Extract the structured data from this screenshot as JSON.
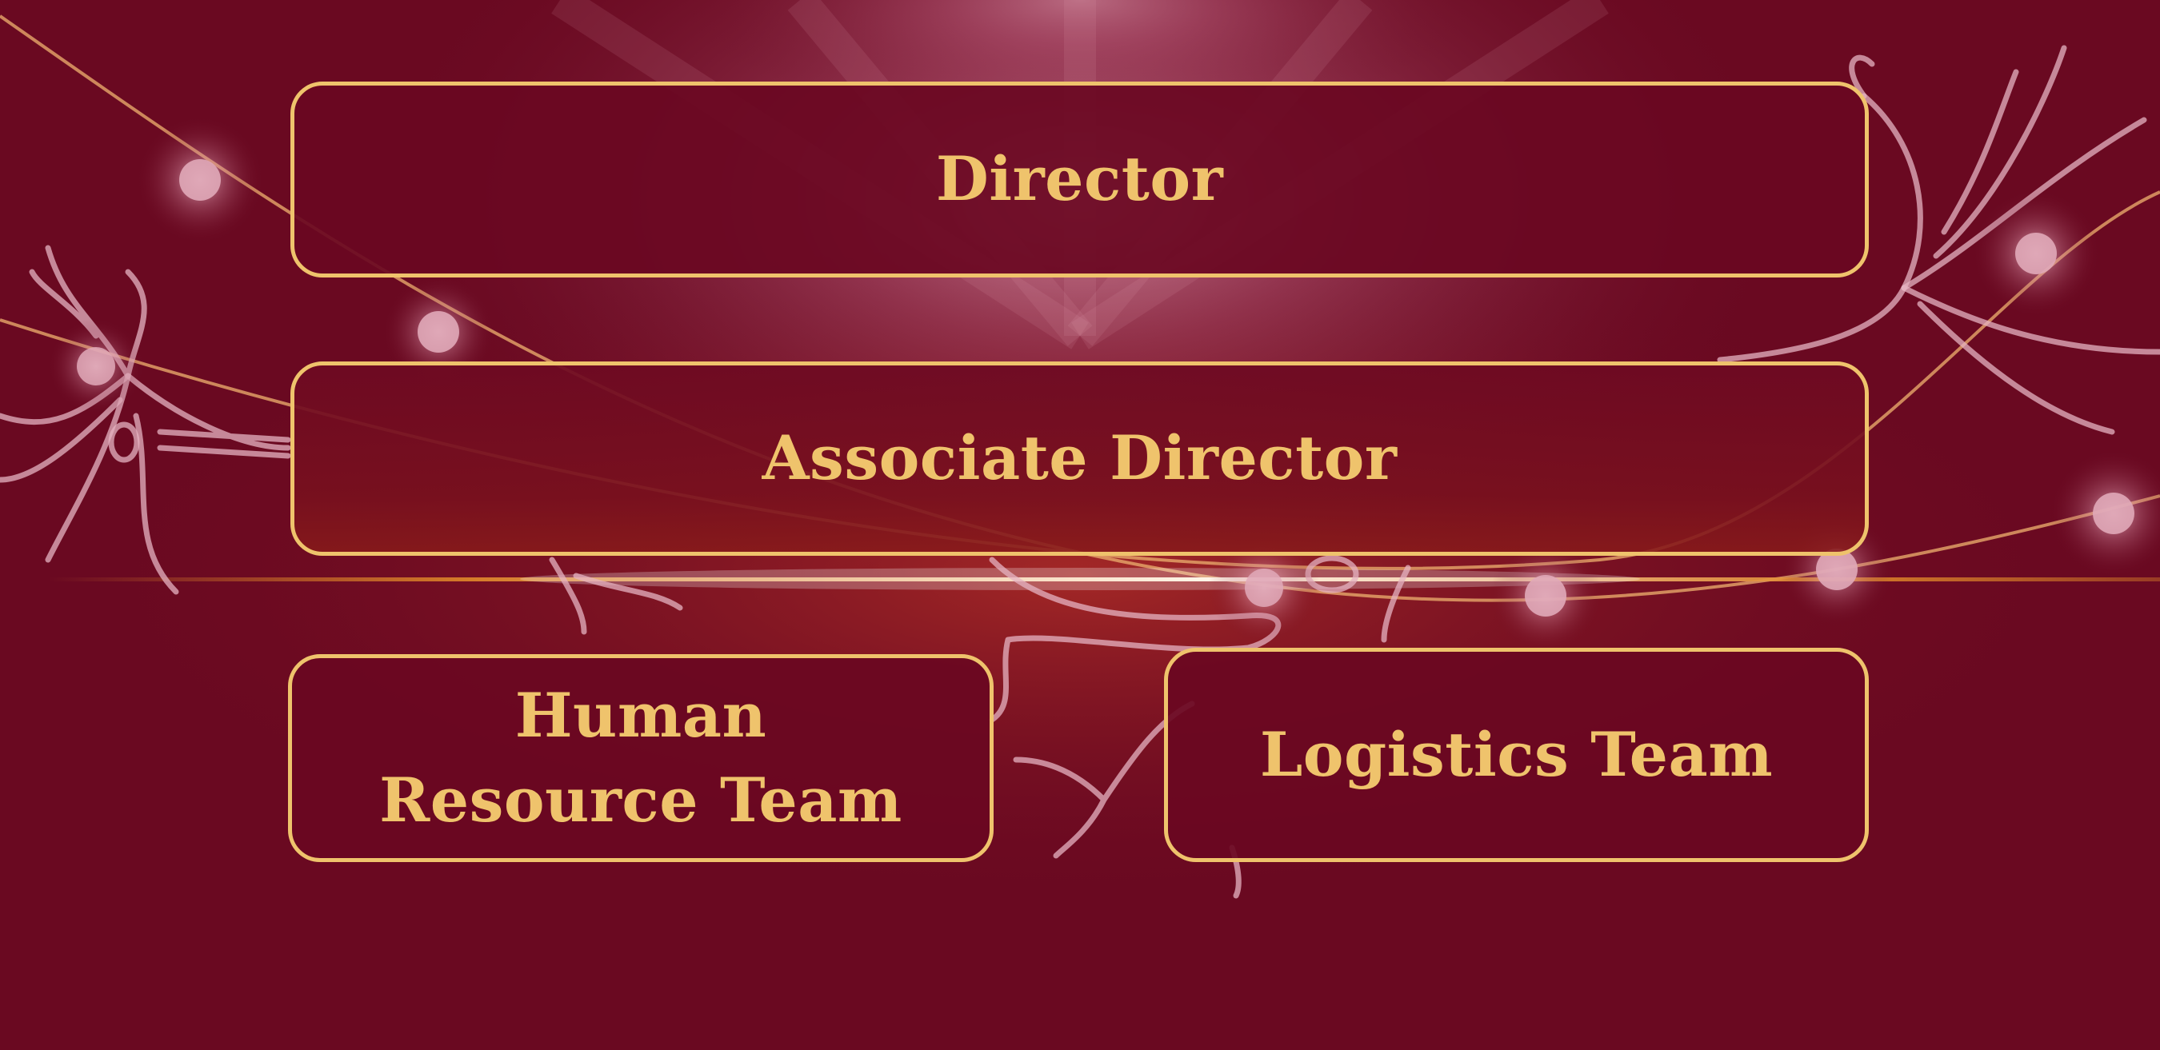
{
  "org_chart": {
    "levels": [
      {
        "id": "director",
        "label": "Director"
      },
      {
        "id": "associate_director",
        "label": "Associate Director"
      },
      {
        "id": "teams",
        "label": "",
        "units": [
          {
            "id": "hr",
            "label": "Human Resource Team"
          },
          {
            "id": "logistics",
            "label": "Logistics Team"
          }
        ]
      }
    ]
  },
  "colors": {
    "background": "#6a0921",
    "box_fill": "#6a0822",
    "accent_gold": "#efc36c",
    "neuron_line": "#e6b3c2",
    "flare": "#e0882a"
  },
  "decor": {
    "background_icons": [
      "neuron-icon",
      "light-burst",
      "lens-flare",
      "glowing-node"
    ]
  }
}
